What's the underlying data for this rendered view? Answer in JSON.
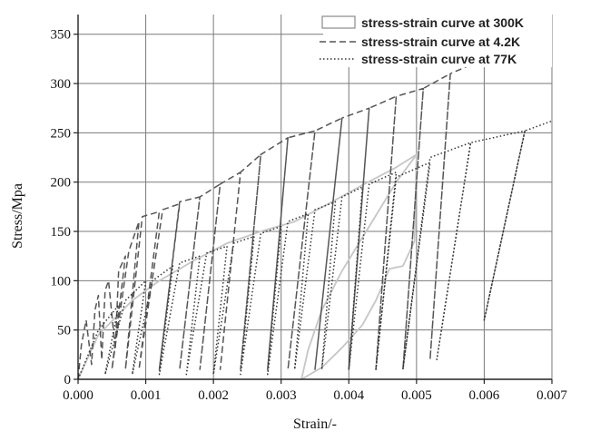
{
  "chart_data": {
    "type": "line",
    "title": "",
    "xlabel": "Strain/-",
    "ylabel": "Stress/Mpa",
    "xlim": [
      0,
      0.007
    ],
    "ylim": [
      0,
      370
    ],
    "x_ticks": [
      0,
      0.001,
      0.002,
      0.003,
      0.004,
      0.005,
      0.006,
      0.007
    ],
    "x_tick_labels": [
      "0.000",
      "0.001",
      "0.002",
      "0.003",
      "0.004",
      "0.005",
      "0.006",
      "0.007"
    ],
    "y_ticks": [
      0,
      50,
      100,
      150,
      200,
      250,
      300,
      350
    ],
    "y_tick_labels": [
      "0",
      "50",
      "100",
      "150",
      "200",
      "250",
      "300",
      "350"
    ],
    "grid": true,
    "legend_position": "top-right",
    "series": [
      {
        "name": "stress-strain curve at 300K",
        "style": "solid",
        "color": "#c6c6c6",
        "points": [
          [
            0,
            0
          ],
          [
            0.0003,
            45
          ],
          [
            0.0008,
            80
          ],
          [
            0.0012,
            100
          ],
          [
            0.0017,
            120
          ],
          [
            0.0022,
            138
          ],
          [
            0.0027,
            150
          ],
          [
            0.0032,
            160
          ],
          [
            0.0037,
            178
          ],
          [
            0.0042,
            197
          ],
          [
            0.0047,
            215
          ],
          [
            0.005,
            228
          ],
          [
            0.00497,
            140
          ],
          [
            0.0048,
            115
          ],
          [
            0.0046,
            112
          ],
          [
            0.0044,
            80
          ],
          [
            0.0042,
            55
          ],
          [
            0.0039,
            32
          ],
          [
            0.0036,
            12
          ],
          [
            0.0033,
            0
          ],
          [
            0.0034,
            30
          ],
          [
            0.0036,
            70
          ],
          [
            0.0039,
            110
          ],
          [
            0.0043,
            155
          ],
          [
            0.0047,
            200
          ],
          [
            0.005,
            228
          ]
        ]
      },
      {
        "name": "stress-strain curve at 4.2K",
        "style": "dashed",
        "color": "#555555",
        "points": [
          [
            0,
            0
          ],
          [
            5e-05,
            35
          ],
          [
            0.00012,
            60
          ],
          [
            0.0002,
            15
          ],
          [
            0.00025,
            70
          ],
          [
            0.0003,
            85
          ],
          [
            0.00035,
            20
          ],
          [
            0.0004,
            90
          ],
          [
            0.00045,
            100
          ],
          [
            0.00055,
            30
          ],
          [
            0.0006,
            110
          ],
          [
            0.0007,
            125
          ],
          [
            0.0005,
            10
          ],
          [
            0.00075,
            130
          ],
          [
            0.0009,
            160
          ],
          [
            0.0007,
            10
          ],
          [
            0.00095,
            165
          ],
          [
            0.0012,
            170
          ],
          [
            0.0009,
            10
          ],
          [
            0.00125,
            172
          ],
          [
            0.0015,
            178
          ],
          [
            0.0012,
            10
          ],
          [
            0.0015,
            180
          ],
          [
            0.0018,
            185
          ],
          [
            0.0015,
            10
          ],
          [
            0.0018,
            185
          ],
          [
            0.0021,
            198
          ],
          [
            0.0018,
            10
          ],
          [
            0.0021,
            198
          ],
          [
            0.0024,
            210
          ],
          [
            0.0021,
            10
          ],
          [
            0.0024,
            210
          ],
          [
            0.0027,
            228
          ],
          [
            0.0024,
            10
          ],
          [
            0.0027,
            228
          ],
          [
            0.0031,
            245
          ],
          [
            0.0028,
            10
          ],
          [
            0.0031,
            245
          ],
          [
            0.0035,
            252
          ],
          [
            0.0031,
            10
          ],
          [
            0.0035,
            252
          ],
          [
            0.0039,
            265
          ],
          [
            0.0035,
            10
          ],
          [
            0.0039,
            265
          ],
          [
            0.0043,
            275
          ],
          [
            0.004,
            10
          ],
          [
            0.0043,
            275
          ],
          [
            0.0047,
            287
          ],
          [
            0.0044,
            10
          ],
          [
            0.0047,
            287
          ],
          [
            0.0051,
            295
          ],
          [
            0.0048,
            10
          ],
          [
            0.0051,
            295
          ],
          [
            0.0055,
            310
          ],
          [
            0.0052,
            20
          ],
          [
            0.0055,
            310
          ],
          [
            0.006,
            325
          ]
        ]
      },
      {
        "name": "stress-strain curve at 77K",
        "style": "dotted",
        "color": "#333333",
        "points": [
          [
            0,
            0
          ],
          [
            0.0003,
            50
          ],
          [
            0.0006,
            75
          ],
          [
            0.0004,
            5
          ],
          [
            0.0007,
            80
          ],
          [
            0.001,
            100
          ],
          [
            0.0008,
            5
          ],
          [
            0.0011,
            100
          ],
          [
            0.0014,
            115
          ],
          [
            0.0012,
            5
          ],
          [
            0.0015,
            118
          ],
          [
            0.0018,
            125
          ],
          [
            0.0016,
            5
          ],
          [
            0.0019,
            128
          ],
          [
            0.0022,
            135
          ],
          [
            0.002,
            5
          ],
          [
            0.0023,
            138
          ],
          [
            0.0026,
            145
          ],
          [
            0.0024,
            5
          ],
          [
            0.0027,
            148
          ],
          [
            0.003,
            155
          ],
          [
            0.0028,
            5
          ],
          [
            0.0031,
            160
          ],
          [
            0.0034,
            168
          ],
          [
            0.0032,
            10
          ],
          [
            0.0035,
            172
          ],
          [
            0.0038,
            180
          ],
          [
            0.0036,
            10
          ],
          [
            0.0039,
            185
          ],
          [
            0.0042,
            195
          ],
          [
            0.004,
            10
          ],
          [
            0.0043,
            198
          ],
          [
            0.0047,
            210
          ],
          [
            0.0044,
            10
          ],
          [
            0.0047,
            205
          ],
          [
            0.0052,
            220
          ],
          [
            0.0048,
            10
          ],
          [
            0.0052,
            225
          ],
          [
            0.0058,
            240
          ],
          [
            0.0053,
            20
          ],
          [
            0.0058,
            240
          ],
          [
            0.0066,
            252
          ],
          [
            0.006,
            60
          ],
          [
            0.0066,
            252
          ],
          [
            0.007,
            262
          ]
        ]
      }
    ]
  }
}
